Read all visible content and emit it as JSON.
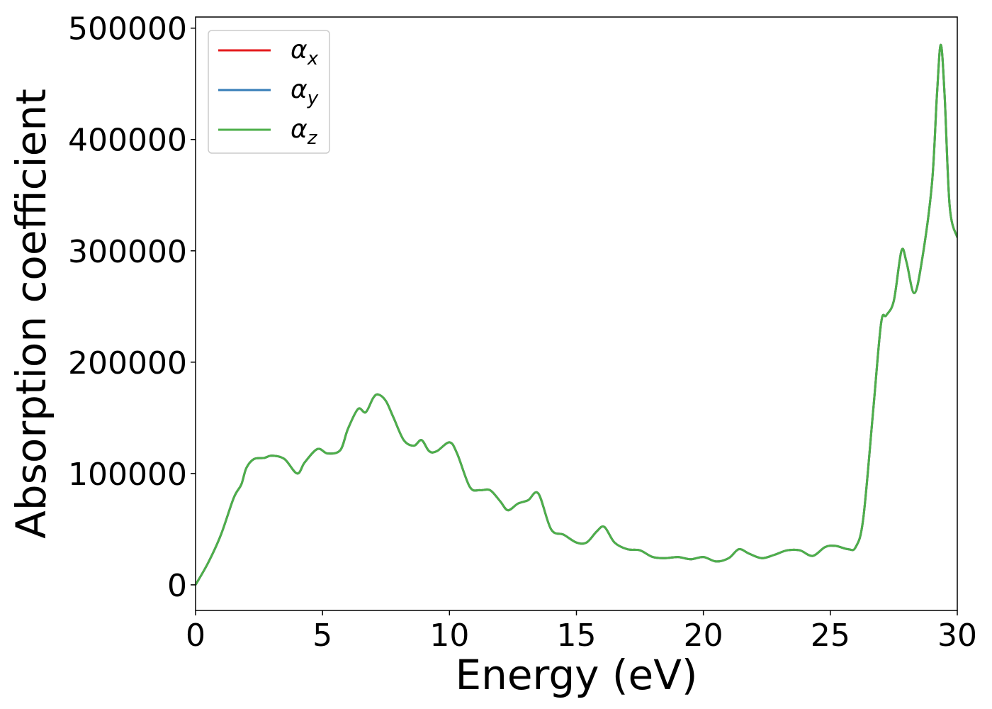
{
  "chart_data": {
    "type": "line",
    "xlabel": "Energy (eV)",
    "ylabel": "Absorption coefficient",
    "xlim": [
      0,
      30
    ],
    "ylim": [
      -23000,
      510000
    ],
    "xticks": [
      0,
      5,
      10,
      15,
      20,
      25,
      30
    ],
    "xtick_labels": [
      "0",
      "5",
      "10",
      "15",
      "20",
      "25",
      "30"
    ],
    "yticks": [
      0,
      100000,
      200000,
      300000,
      400000,
      500000
    ],
    "ytick_labels": [
      "0",
      "100000",
      "200000",
      "300000",
      "400000",
      "500000"
    ],
    "grid": false,
    "legend_position": "top-left",
    "x": [
      0,
      0.5,
      1.0,
      1.5,
      1.8,
      2.0,
      2.3,
      2.7,
      3.0,
      3.5,
      4.0,
      4.3,
      4.8,
      5.2,
      5.7,
      6.0,
      6.4,
      6.7,
      7.0,
      7.2,
      7.5,
      7.8,
      8.2,
      8.6,
      8.9,
      9.2,
      9.5,
      10.0,
      10.3,
      10.8,
      11.2,
      11.6,
      12.0,
      12.3,
      12.7,
      13.1,
      13.5,
      14.0,
      14.5,
      15.0,
      15.4,
      15.8,
      16.1,
      16.5,
      17.0,
      17.5,
      18.0,
      18.5,
      19.0,
      19.5,
      20.0,
      20.5,
      21.0,
      21.4,
      21.8,
      22.3,
      22.8,
      23.3,
      23.8,
      24.3,
      24.8,
      25.2,
      25.7,
      26.0,
      26.3,
      26.7,
      27.0,
      27.2,
      27.5,
      27.8,
      28.0,
      28.3,
      28.6,
      29.0,
      29.2,
      29.35,
      29.5,
      29.7,
      30.0
    ],
    "series": [
      {
        "name": "α_x",
        "color": "#e41a1c",
        "values": [
          0,
          20000,
          45000,
          78000,
          90000,
          105000,
          113000,
          114000,
          116000,
          113000,
          100000,
          110000,
          122000,
          118000,
          121000,
          140000,
          158000,
          155000,
          168000,
          171000,
          165000,
          150000,
          130000,
          125000,
          130000,
          120000,
          120000,
          128000,
          118000,
          88000,
          85000,
          85000,
          75000,
          67000,
          73000,
          76000,
          82000,
          50000,
          45000,
          38000,
          38000,
          48000,
          52000,
          38000,
          32000,
          31000,
          25000,
          24000,
          25000,
          23000,
          25000,
          21000,
          24000,
          32000,
          28000,
          24000,
          27000,
          31000,
          31000,
          26000,
          34000,
          35000,
          32000,
          34000,
          60000,
          160000,
          235000,
          242000,
          255000,
          300000,
          290000,
          262000,
          290000,
          360000,
          440000,
          485000,
          440000,
          340000,
          312000
        ]
      },
      {
        "name": "α_y",
        "color": "#377eb8",
        "values": [
          0,
          20000,
          45000,
          78000,
          90000,
          105000,
          113000,
          114000,
          116000,
          113000,
          100000,
          110000,
          122000,
          118000,
          121000,
          140000,
          158000,
          155000,
          168000,
          171000,
          165000,
          150000,
          130000,
          125000,
          130000,
          120000,
          120000,
          128000,
          118000,
          88000,
          85000,
          85000,
          75000,
          67000,
          73000,
          76000,
          82000,
          50000,
          45000,
          38000,
          38000,
          48000,
          52000,
          38000,
          32000,
          31000,
          25000,
          24000,
          25000,
          23000,
          25000,
          21000,
          24000,
          32000,
          28000,
          24000,
          27000,
          31000,
          31000,
          26000,
          34000,
          35000,
          32000,
          34000,
          60000,
          160000,
          235000,
          242000,
          255000,
          300000,
          290000,
          262000,
          290000,
          360000,
          440000,
          485000,
          440000,
          340000,
          312000
        ]
      },
      {
        "name": "α_z",
        "color": "#4daf4a",
        "values": [
          0,
          20000,
          45000,
          78000,
          90000,
          105000,
          113000,
          114000,
          116000,
          113000,
          100000,
          110000,
          122000,
          118000,
          121000,
          140000,
          158000,
          155000,
          168000,
          171000,
          165000,
          150000,
          130000,
          125000,
          130000,
          120000,
          120000,
          128000,
          118000,
          88000,
          85000,
          85000,
          75000,
          67000,
          73000,
          76000,
          82000,
          50000,
          45000,
          38000,
          38000,
          48000,
          52000,
          38000,
          32000,
          31000,
          25000,
          24000,
          25000,
          23000,
          25000,
          21000,
          24000,
          32000,
          28000,
          24000,
          27000,
          31000,
          31000,
          26000,
          34000,
          35000,
          32000,
          34000,
          60000,
          160000,
          235000,
          242000,
          255000,
          300000,
          290000,
          262000,
          290000,
          360000,
          440000,
          485000,
          440000,
          340000,
          312000
        ]
      }
    ],
    "legend": [
      {
        "symbol": "α",
        "sub": "x",
        "color": "#e41a1c"
      },
      {
        "symbol": "α",
        "sub": "y",
        "color": "#377eb8"
      },
      {
        "symbol": "α",
        "sub": "z",
        "color": "#4daf4a"
      }
    ]
  }
}
